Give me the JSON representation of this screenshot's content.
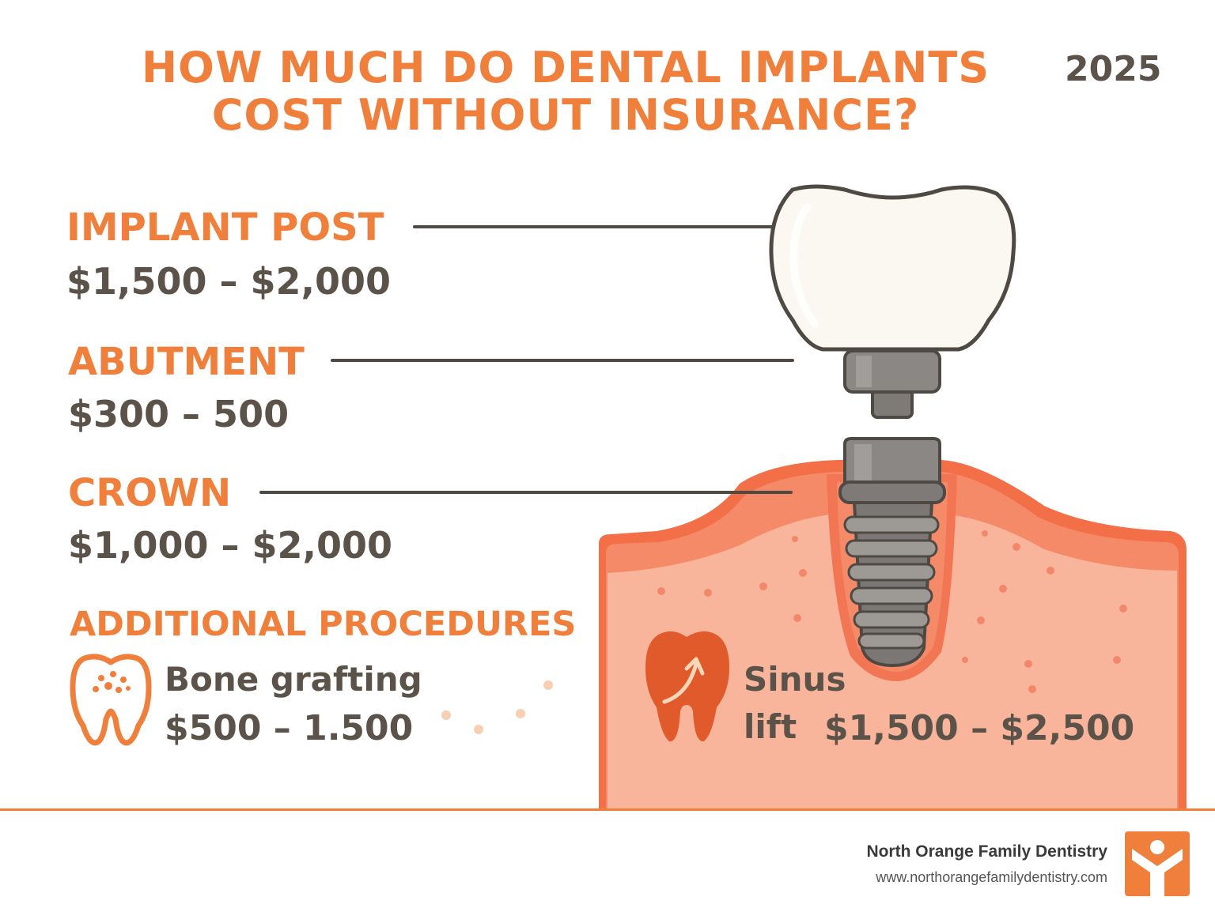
{
  "title": {
    "line1": "HOW MUCH DO DENTAL IMPLANTS",
    "line2": "COST WITHOUT INSURANCE?"
  },
  "year": "2025",
  "components": [
    {
      "label": "IMPLANT POST",
      "price": "$1,500 – $2,000"
    },
    {
      "label": "ABUTMENT",
      "price": "$300 – 500"
    },
    {
      "label": "CROWN",
      "price": "$1,000 – $2,000"
    }
  ],
  "additional": {
    "heading": "ADDITIONAL PROCEDURES",
    "bone_grafting": {
      "name": "Bone grafting",
      "price": "$500 – 1.500",
      "icon": "tooth-outline-icon"
    },
    "sinus_lift": {
      "name_line1": "Sinus",
      "name_line2": "lift",
      "price": "$1,500 – $2,500",
      "icon": "tooth-arrow-icon"
    }
  },
  "footer": {
    "practice_name": "North Orange Family Dentistry",
    "url": "www.northorangefamilydentistry.com",
    "logo_icon": "person-logo-icon"
  },
  "colors": {
    "accent": "#f07f3c",
    "text_dark": "#5b5249",
    "gum": "#f58a68",
    "bone": "#f9b59b",
    "crown": "#fbf8f1",
    "implant_metal": "#8a8785"
  }
}
